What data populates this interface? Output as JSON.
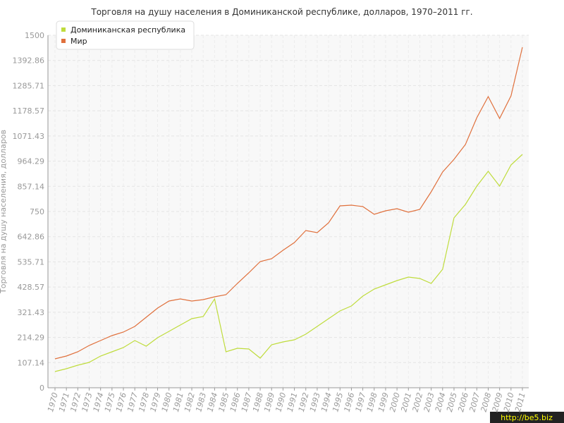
{
  "chart_data": {
    "type": "line",
    "title": "Торговля на душу населения в Доминиканской республике, долларов, 1970–2011 гг.",
    "y_label": "Торговля на душу населения, долларов",
    "watermark": "http://be5.biz",
    "categories": [
      "1970",
      "1971",
      "1972",
      "1973",
      "1974",
      "1975",
      "1976",
      "1977",
      "1978",
      "1979",
      "1980",
      "1981",
      "1982",
      "1983",
      "1984",
      "1985",
      "1986",
      "1987",
      "1988",
      "1989",
      "1990",
      "1991",
      "1992",
      "1993",
      "1994",
      "1995",
      "1996",
      "1997",
      "1998",
      "1999",
      "2000",
      "2001",
      "2002",
      "2003",
      "2004",
      "2005",
      "2006",
      "2007",
      "2008",
      "2009",
      "2010",
      "2011"
    ],
    "series": [
      {
        "name": "Доминиканская республика",
        "color": "#bfdc3c",
        "values": [
          69,
          81,
          96,
          108,
          135,
          153,
          171,
          201,
          177,
          213,
          240,
          267,
          294,
          303,
          378,
          153,
          168,
          165,
          126,
          183,
          195,
          204,
          228,
          261,
          294,
          327,
          348,
          390,
          420,
          438,
          456,
          471,
          465,
          444,
          504,
          723,
          780,
          858,
          921,
          858,
          948,
          993
        ]
      },
      {
        "name": "Мир",
        "color": "#e0703c",
        "values": [
          123,
          135,
          153,
          180,
          201,
          222,
          237,
          261,
          300,
          339,
          369,
          378,
          369,
          375,
          387,
          396,
          444,
          489,
          537,
          549,
          585,
          618,
          669,
          660,
          702,
          774,
          777,
          771,
          738,
          753,
          762,
          747,
          759,
          834,
          918,
          972,
          1035,
          1149,
          1239,
          1146,
          1242,
          1449
        ]
      }
    ],
    "ylim": [
      0,
      1500
    ],
    "yticks": [
      0,
      107.14,
      214.29,
      321.43,
      428.57,
      535.71,
      642.86,
      750,
      857.14,
      964.29,
      1071.43,
      1178.57,
      1285.71,
      1392.86,
      1500
    ],
    "grid": true,
    "legend": "top-left"
  }
}
